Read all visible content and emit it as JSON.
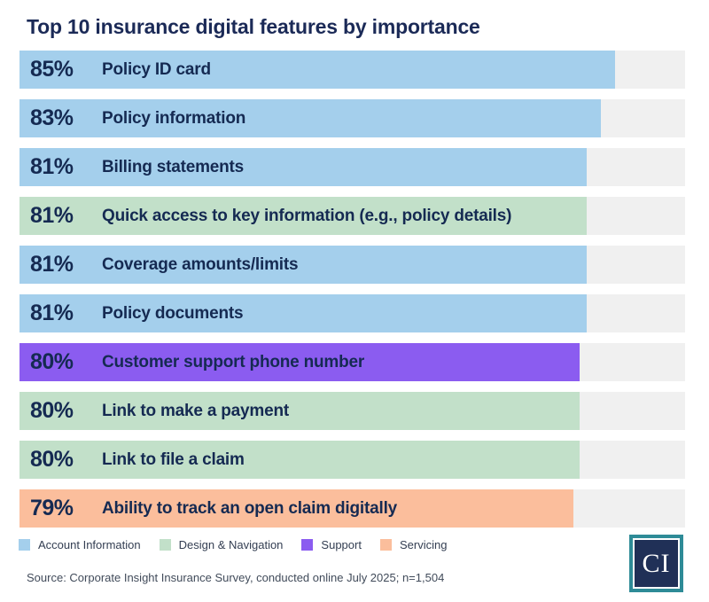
{
  "title": "Top 10 insurance digital features by importance",
  "chart_data": {
    "type": "bar",
    "orientation": "horizontal",
    "unit": "%",
    "xlim": [
      0,
      95
    ],
    "grid": false,
    "legend_position": "bottom",
    "rows": [
      {
        "value": 85,
        "value_label": "85%",
        "label": "Policy ID card",
        "category": "Account Information"
      },
      {
        "value": 83,
        "value_label": "83%",
        "label": "Policy information",
        "category": "Account Information"
      },
      {
        "value": 81,
        "value_label": "81%",
        "label": "Billing statements",
        "category": "Account Information"
      },
      {
        "value": 81,
        "value_label": "81%",
        "label": "Quick access to key information (e.g., policy details)",
        "category": "Design & Navigation"
      },
      {
        "value": 81,
        "value_label": "81%",
        "label": "Coverage amounts/limits",
        "category": "Account Information"
      },
      {
        "value": 81,
        "value_label": "81%",
        "label": "Policy documents",
        "category": "Account Information"
      },
      {
        "value": 80,
        "value_label": "80%",
        "label": "Customer support phone number",
        "category": "Support"
      },
      {
        "value": 80,
        "value_label": "80%",
        "label": "Link to make a payment",
        "category": "Design & Navigation"
      },
      {
        "value": 80,
        "value_label": "80%",
        "label": "Link to file a claim",
        "category": "Design & Navigation"
      },
      {
        "value": 79,
        "value_label": "79%",
        "label": "Ability to track an open claim digitally",
        "category": "Servicing"
      }
    ]
  },
  "legend": [
    {
      "label": "Account Information"
    },
    {
      "label": "Design & Navigation"
    },
    {
      "label": "Support"
    },
    {
      "label": "Servicing"
    }
  ],
  "colors": {
    "categories": {
      "Account Information": "#A4CFEC",
      "Design & Navigation": "#C2E0C9",
      "Support": "#8B5CF0",
      "Servicing": "#FBBE9C"
    },
    "track": "#F0F0F0",
    "title_text": "#1B2A57",
    "bar_text": "#152A52",
    "logo_teal": "#2E8B97",
    "logo_navy": "#203057"
  },
  "source": {
    "text": "Source: Corporate Insight Insurance Survey, conducted online July 2025; n=1,504"
  },
  "logo": {
    "text": "CI"
  }
}
